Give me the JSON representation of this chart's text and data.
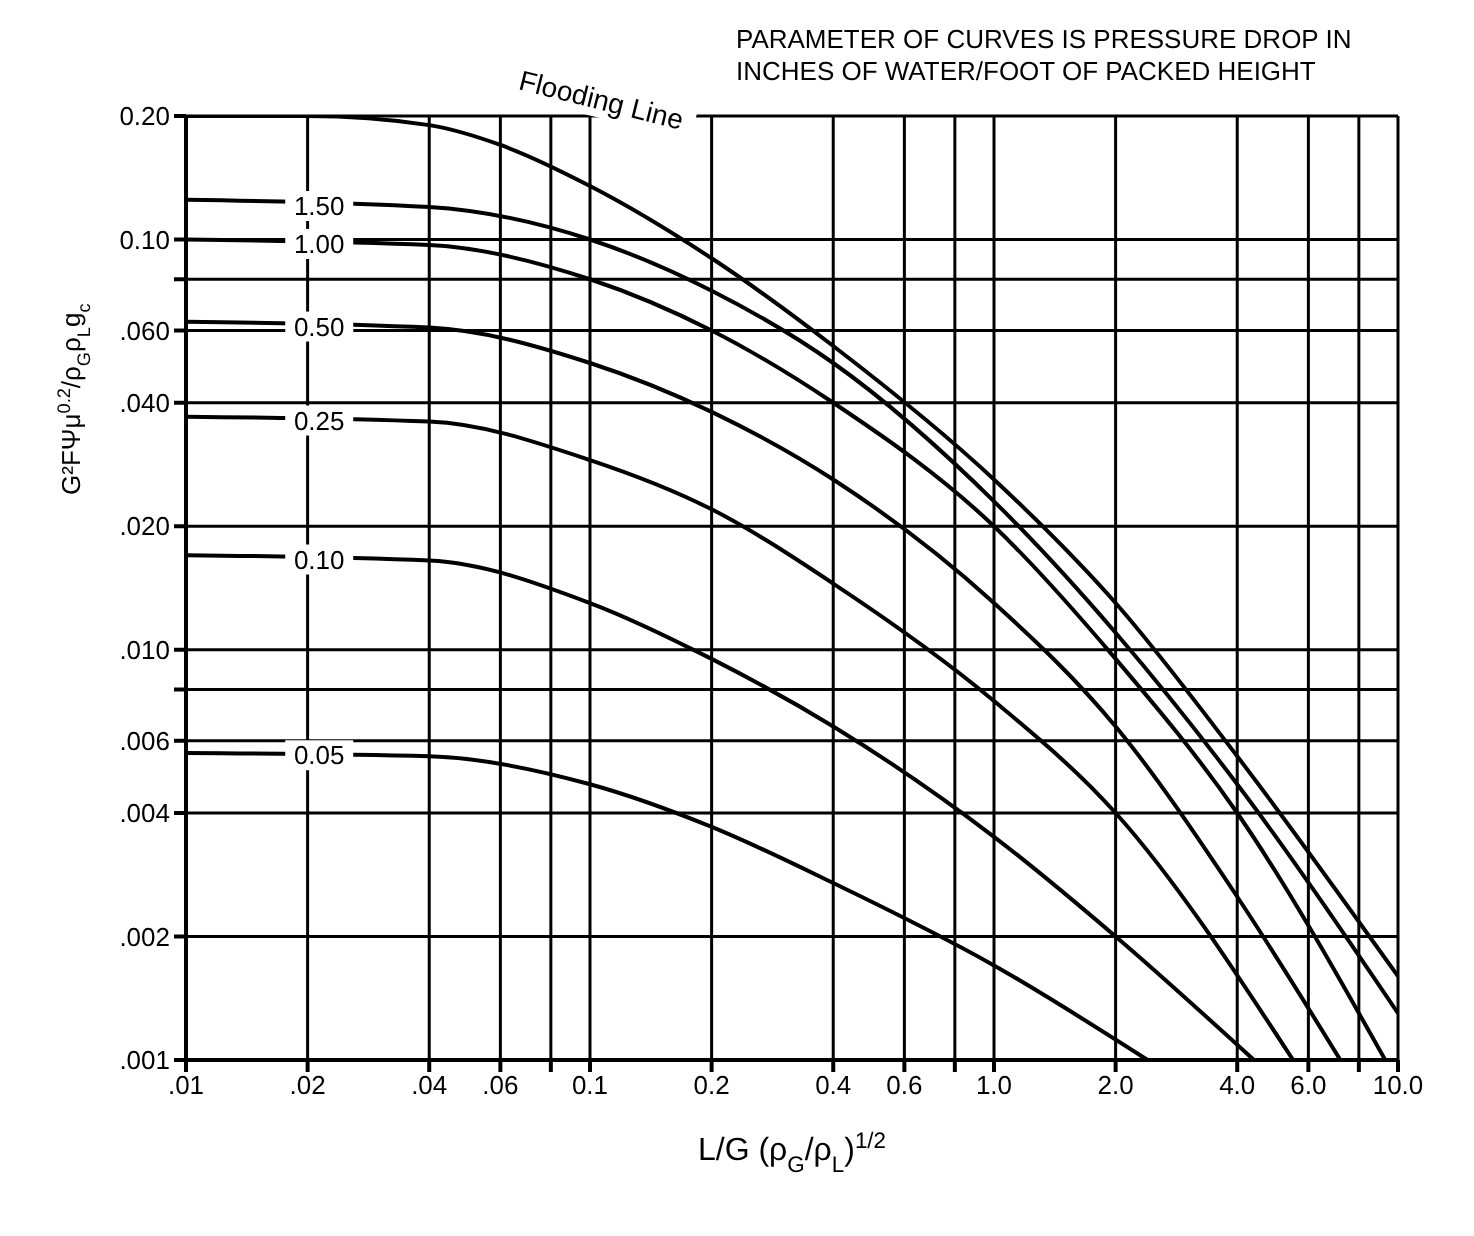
{
  "chart_data": {
    "type": "line",
    "xlabel": "L/G (ρ$_{G}$/ρ$_{L}$)$^{1/2}$",
    "ylabel": "G²FΨμ$^{0.2}$/ρ$_{G}$ρ$_{L}$g$_{c}$",
    "annotations": [
      "PARAMETER OF CURVES IS PRESSURE DROP IN INCHES OF WATER/FOOT OF PACKED HEIGHT"
    ],
    "log": "xy",
    "grid": true,
    "marker": "none",
    "line_style": "solid",
    "xlim": [
      0.01,
      10
    ],
    "ylim": [
      0.001,
      0.2
    ],
    "xticks": [
      {
        "value": 0.01,
        "label": ".01"
      },
      {
        "value": 0.02,
        "label": ".02"
      },
      {
        "value": 0.04,
        "label": ".04"
      },
      {
        "value": 0.06,
        "label": ".06"
      },
      {
        "value": 0.08,
        "label": null
      },
      {
        "value": 0.1,
        "label": "0.1"
      },
      0.2,
      0.4,
      0.6,
      {
        "value": 0.8,
        "label": null
      },
      {
        "value": 1,
        "label": "1.0"
      },
      {
        "value": 2,
        "label": "2.0"
      },
      {
        "value": 4,
        "label": "4.0"
      },
      {
        "value": 6,
        "label": "6.0"
      },
      {
        "value": 8,
        "label": null
      },
      {
        "value": 10,
        "label": "10.0"
      }
    ],
    "yticks": [
      {
        "value": 0.001,
        "label": ".001"
      },
      {
        "value": 0.002,
        "label": ".002"
      },
      {
        "value": 0.004,
        "label": ".004"
      },
      {
        "value": 0.006,
        "label": ".006"
      },
      {
        "value": 0.008,
        "label": null
      },
      {
        "value": 0.01,
        "label": ".010"
      },
      {
        "value": 0.02,
        "label": ".020"
      },
      {
        "value": 0.04,
        "label": ".040"
      },
      {
        "value": 0.06,
        "label": ".060"
      },
      {
        "value": 0.08,
        "label": null
      },
      {
        "value": 0.1,
        "label": "0.10"
      },
      {
        "value": 0.2,
        "label": "0.20"
      }
    ],
    "series": [
      {
        "name": "Flooding Line",
        "color": "#000000",
        "x": [
          0.01,
          0.02,
          0.04,
          0.06,
          0.1,
          0.2,
          0.4,
          1,
          2,
          4,
          10
        ],
        "values": [
          0.2,
          0.2,
          0.19,
          0.17,
          0.135,
          0.09,
          0.055,
          0.026,
          0.013,
          0.0055,
          0.0016
        ]
      },
      {
        "name": "1.50",
        "color": "#000000",
        "x": [
          0.01,
          0.04,
          0.1,
          0.2,
          0.4,
          1,
          2,
          4,
          10
        ],
        "values": [
          0.125,
          0.12,
          0.1,
          0.075,
          0.05,
          0.023,
          0.011,
          0.0047,
          0.0013
        ]
      },
      {
        "name": "1.00",
        "color": "#000000",
        "x": [
          0.01,
          0.04,
          0.1,
          0.2,
          0.4,
          1,
          2,
          4,
          9.3
        ],
        "values": [
          0.1,
          0.097,
          0.08,
          0.06,
          0.04,
          0.02,
          0.0095,
          0.004,
          0.001
        ]
      },
      {
        "name": "0.50",
        "color": "#000000",
        "x": [
          0.01,
          0.04,
          0.1,
          0.2,
          0.4,
          1,
          2,
          4,
          7.2
        ],
        "values": [
          0.063,
          0.061,
          0.05,
          0.038,
          0.026,
          0.013,
          0.0065,
          0.0025,
          0.001
        ]
      },
      {
        "name": "0.25",
        "color": "#000000",
        "x": [
          0.01,
          0.04,
          0.1,
          0.2,
          0.4,
          1,
          2,
          5.5
        ],
        "values": [
          0.037,
          0.036,
          0.029,
          0.022,
          0.0145,
          0.0075,
          0.004,
          0.001
        ]
      },
      {
        "name": "0.10",
        "color": "#000000",
        "x": [
          0.01,
          0.04,
          0.1,
          0.2,
          0.4,
          1,
          2,
          4.4
        ],
        "values": [
          0.017,
          0.0165,
          0.013,
          0.0095,
          0.0065,
          0.0035,
          0.002,
          0.001
        ]
      },
      {
        "name": "0.05",
        "color": "#000000",
        "x": [
          0.01,
          0.04,
          0.1,
          0.2,
          0.4,
          1,
          2.4
        ],
        "values": [
          0.0056,
          0.0055,
          0.0047,
          0.0037,
          0.0027,
          0.0017,
          0.001
        ]
      }
    ]
  }
}
